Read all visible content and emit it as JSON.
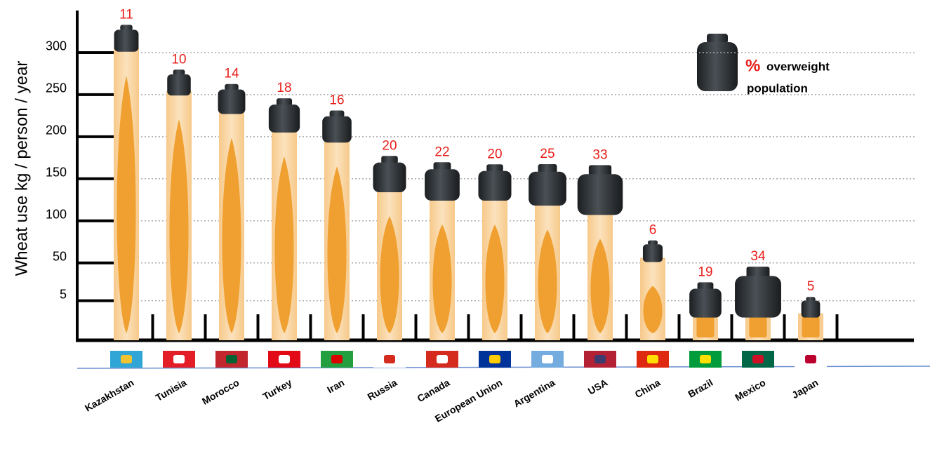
{
  "chart_data": {
    "type": "bar",
    "ylabel": "Wheat use kg / person / year",
    "categories": [
      "Kazakhstan",
      "Tunisia",
      "Morocco",
      "Turkey",
      "Iran",
      "Russia",
      "Canada",
      "European Union",
      "Argentina",
      "USA",
      "China",
      "Brazil",
      "Mexico",
      "Japan"
    ],
    "values": [
      306,
      254,
      232,
      210,
      198,
      139,
      129,
      129,
      123,
      112,
      56,
      -10,
      -10,
      -10
    ],
    "overweight": [
      11,
      10,
      14,
      18,
      16,
      20,
      22,
      20,
      25,
      33,
      6,
      19,
      34,
      5
    ],
    "color": "#f0a030",
    "weight_color": "#2e3236",
    "label_color": "#e8201c",
    "ylim": [
      -42,
      350
    ],
    "yticks": [
      5,
      50,
      100,
      150,
      200,
      250,
      300
    ],
    "grid": true,
    "legend_symbol": "%",
    "legend_label": [
      "overweight",
      "population"
    ]
  }
}
